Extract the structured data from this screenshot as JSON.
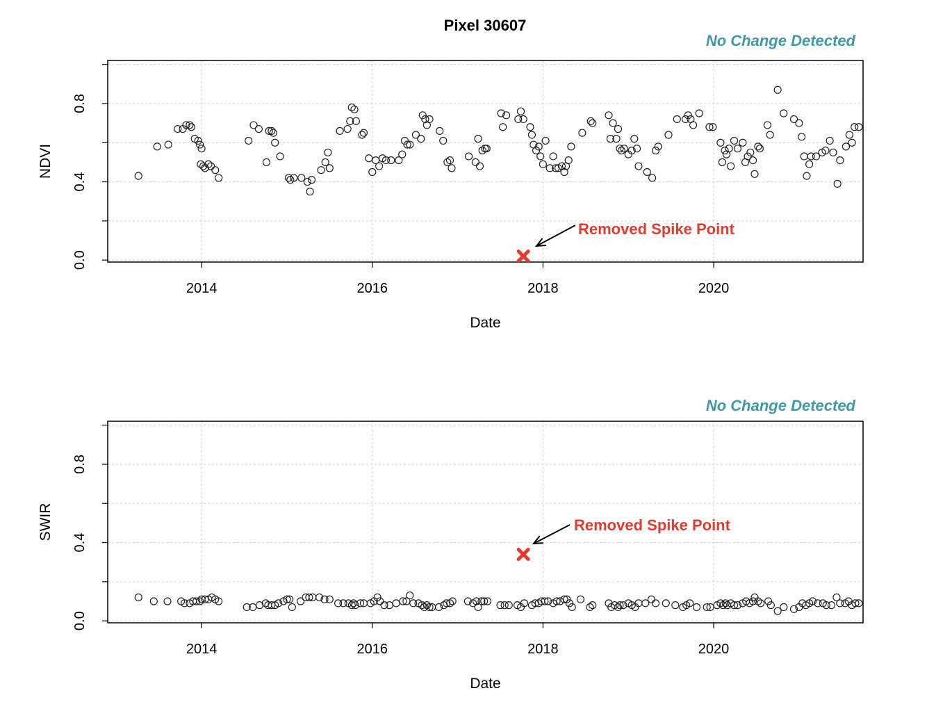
{
  "title": "Pixel 30607",
  "chart_data": [
    {
      "type": "scatter",
      "ylabel": "NDVI",
      "xlabel": "Date",
      "status": "No Change Detected",
      "annotation": "Removed Spike Point",
      "xlim": [
        2012.9,
        2021.75
      ],
      "ylim": [
        -0.01,
        1.02
      ],
      "xticks": [
        2014,
        2016,
        2018,
        2020
      ],
      "yticks": [
        0.0,
        0.4,
        0.8
      ],
      "xgrid": [
        2014,
        2016,
        2018,
        2020
      ],
      "ygrid": [
        0.0,
        0.2,
        0.4,
        0.6,
        0.8,
        1.0
      ],
      "spike": {
        "x": 2017.77,
        "y": 0.02
      },
      "points": [
        [
          2013.26,
          0.43
        ],
        [
          2013.48,
          0.58
        ],
        [
          2013.61,
          0.59
        ],
        [
          2013.72,
          0.67
        ],
        [
          2013.78,
          0.67
        ],
        [
          2013.82,
          0.69
        ],
        [
          2013.86,
          0.69
        ],
        [
          2013.88,
          0.68
        ],
        [
          2013.92,
          0.62
        ],
        [
          2013.96,
          0.61
        ],
        [
          2013.98,
          0.59
        ],
        [
          2014.0,
          0.57
        ],
        [
          2013.99,
          0.49
        ],
        [
          2014.02,
          0.48
        ],
        [
          2014.04,
          0.47
        ],
        [
          2014.08,
          0.49
        ],
        [
          2014.11,
          0.48
        ],
        [
          2014.16,
          0.46
        ],
        [
          2014.2,
          0.42
        ],
        [
          2014.55,
          0.61
        ],
        [
          2014.61,
          0.69
        ],
        [
          2014.67,
          0.67
        ],
        [
          2014.76,
          0.5
        ],
        [
          2014.79,
          0.66
        ],
        [
          2014.82,
          0.66
        ],
        [
          2014.84,
          0.65
        ],
        [
          2014.86,
          0.6
        ],
        [
          2014.92,
          0.53
        ],
        [
          2015.02,
          0.42
        ],
        [
          2015.04,
          0.41
        ],
        [
          2015.08,
          0.42
        ],
        [
          2015.17,
          0.42
        ],
        [
          2015.24,
          0.4
        ],
        [
          2015.27,
          0.35
        ],
        [
          2015.29,
          0.41
        ],
        [
          2015.4,
          0.46
        ],
        [
          2015.45,
          0.5
        ],
        [
          2015.48,
          0.55
        ],
        [
          2015.5,
          0.47
        ],
        [
          2015.62,
          0.66
        ],
        [
          2015.71,
          0.67
        ],
        [
          2015.74,
          0.71
        ],
        [
          2015.76,
          0.78
        ],
        [
          2015.79,
          0.77
        ],
        [
          2015.81,
          0.71
        ],
        [
          2015.88,
          0.64
        ],
        [
          2015.9,
          0.65
        ],
        [
          2015.96,
          0.52
        ],
        [
          2016.0,
          0.45
        ],
        [
          2016.04,
          0.51
        ],
        [
          2016.08,
          0.48
        ],
        [
          2016.12,
          0.52
        ],
        [
          2016.16,
          0.51
        ],
        [
          2016.22,
          0.51
        ],
        [
          2016.31,
          0.51
        ],
        [
          2016.35,
          0.54
        ],
        [
          2016.38,
          0.61
        ],
        [
          2016.41,
          0.59
        ],
        [
          2016.44,
          0.59
        ],
        [
          2016.51,
          0.64
        ],
        [
          2016.57,
          0.62
        ],
        [
          2016.59,
          0.74
        ],
        [
          2016.62,
          0.72
        ],
        [
          2016.64,
          0.69
        ],
        [
          2016.67,
          0.72
        ],
        [
          2016.79,
          0.66
        ],
        [
          2016.83,
          0.61
        ],
        [
          2016.88,
          0.5
        ],
        [
          2016.91,
          0.51
        ],
        [
          2016.93,
          0.47
        ],
        [
          2017.13,
          0.53
        ],
        [
          2017.21,
          0.5
        ],
        [
          2017.24,
          0.62
        ],
        [
          2017.26,
          0.48
        ],
        [
          2017.29,
          0.56
        ],
        [
          2017.32,
          0.57
        ],
        [
          2017.34,
          0.57
        ],
        [
          2017.51,
          0.75
        ],
        [
          2017.53,
          0.68
        ],
        [
          2017.57,
          0.74
        ],
        [
          2017.71,
          0.72
        ],
        [
          2017.74,
          0.76
        ],
        [
          2017.77,
          0.72
        ],
        [
          2017.85,
          0.68
        ],
        [
          2017.87,
          0.64
        ],
        [
          2017.89,
          0.59
        ],
        [
          2017.92,
          0.56
        ],
        [
          2017.95,
          0.58
        ],
        [
          2017.97,
          0.53
        ],
        [
          2018.0,
          0.49
        ],
        [
          2018.03,
          0.61
        ],
        [
          2018.08,
          0.47
        ],
        [
          2018.12,
          0.53
        ],
        [
          2018.15,
          0.47
        ],
        [
          2018.18,
          0.47
        ],
        [
          2018.22,
          0.48
        ],
        [
          2018.25,
          0.45
        ],
        [
          2018.27,
          0.48
        ],
        [
          2018.3,
          0.51
        ],
        [
          2018.33,
          0.58
        ],
        [
          2018.46,
          0.65
        ],
        [
          2018.56,
          0.71
        ],
        [
          2018.58,
          0.7
        ],
        [
          2018.77,
          0.74
        ],
        [
          2018.79,
          0.62
        ],
        [
          2018.82,
          0.7
        ],
        [
          2018.86,
          0.62
        ],
        [
          2018.88,
          0.67
        ],
        [
          2018.9,
          0.57
        ],
        [
          2018.92,
          0.56
        ],
        [
          2018.95,
          0.57
        ],
        [
          2019.0,
          0.54
        ],
        [
          2019.04,
          0.56
        ],
        [
          2019.07,
          0.62
        ],
        [
          2019.1,
          0.57
        ],
        [
          2019.12,
          0.48
        ],
        [
          2019.22,
          0.45
        ],
        [
          2019.28,
          0.42
        ],
        [
          2019.32,
          0.56
        ],
        [
          2019.35,
          0.58
        ],
        [
          2019.47,
          0.64
        ],
        [
          2019.57,
          0.72
        ],
        [
          2019.67,
          0.72
        ],
        [
          2019.7,
          0.74
        ],
        [
          2019.73,
          0.72
        ],
        [
          2019.76,
          0.69
        ],
        [
          2019.83,
          0.75
        ],
        [
          2019.95,
          0.68
        ],
        [
          2019.99,
          0.68
        ],
        [
          2020.08,
          0.6
        ],
        [
          2020.1,
          0.5
        ],
        [
          2020.13,
          0.56
        ],
        [
          2020.15,
          0.54
        ],
        [
          2020.18,
          0.57
        ],
        [
          2020.2,
          0.48
        ],
        [
          2020.24,
          0.61
        ],
        [
          2020.28,
          0.57
        ],
        [
          2020.34,
          0.6
        ],
        [
          2020.37,
          0.5
        ],
        [
          2020.4,
          0.53
        ],
        [
          2020.43,
          0.55
        ],
        [
          2020.46,
          0.51
        ],
        [
          2020.48,
          0.44
        ],
        [
          2020.52,
          0.58
        ],
        [
          2020.54,
          0.57
        ],
        [
          2020.63,
          0.69
        ],
        [
          2020.66,
          0.64
        ],
        [
          2020.75,
          0.87
        ],
        [
          2020.82,
          0.75
        ],
        [
          2020.94,
          0.72
        ],
        [
          2021.0,
          0.7
        ],
        [
          2021.03,
          0.63
        ],
        [
          2021.06,
          0.53
        ],
        [
          2021.09,
          0.43
        ],
        [
          2021.12,
          0.49
        ],
        [
          2021.14,
          0.53
        ],
        [
          2021.2,
          0.53
        ],
        [
          2021.27,
          0.55
        ],
        [
          2021.31,
          0.56
        ],
        [
          2021.36,
          0.61
        ],
        [
          2021.4,
          0.55
        ],
        [
          2021.45,
          0.39
        ],
        [
          2021.48,
          0.51
        ],
        [
          2021.55,
          0.58
        ],
        [
          2021.59,
          0.64
        ],
        [
          2021.62,
          0.6
        ],
        [
          2021.65,
          0.68
        ],
        [
          2021.7,
          0.68
        ]
      ]
    },
    {
      "type": "scatter",
      "ylabel": "SWIR",
      "xlabel": "Date",
      "status": "No Change Detected",
      "annotation": "Removed Spike Point",
      "xlim": [
        2012.9,
        2021.75
      ],
      "ylim": [
        -0.01,
        1.02
      ],
      "xticks": [
        2014,
        2016,
        2018,
        2020
      ],
      "yticks": [
        0.0,
        0.4,
        0.8
      ],
      "xgrid": [
        2014,
        2016,
        2018,
        2020
      ],
      "ygrid": [
        0.0,
        0.2,
        0.4,
        0.6,
        0.8,
        1.0
      ],
      "spike": {
        "x": 2017.77,
        "y": 0.34
      },
      "points": [
        [
          2013.26,
          0.12
        ],
        [
          2013.44,
          0.1
        ],
        [
          2013.6,
          0.1
        ],
        [
          2013.76,
          0.1
        ],
        [
          2013.8,
          0.09
        ],
        [
          2013.86,
          0.09
        ],
        [
          2013.9,
          0.1
        ],
        [
          2013.94,
          0.1
        ],
        [
          2013.98,
          0.1
        ],
        [
          2014.0,
          0.11
        ],
        [
          2014.04,
          0.11
        ],
        [
          2014.08,
          0.11
        ],
        [
          2014.12,
          0.12
        ],
        [
          2014.16,
          0.11
        ],
        [
          2014.2,
          0.1
        ],
        [
          2014.53,
          0.07
        ],
        [
          2014.6,
          0.07
        ],
        [
          2014.68,
          0.08
        ],
        [
          2014.75,
          0.09
        ],
        [
          2014.78,
          0.08
        ],
        [
          2014.82,
          0.08
        ],
        [
          2014.86,
          0.08
        ],
        [
          2014.9,
          0.09
        ],
        [
          2014.96,
          0.1
        ],
        [
          2015.0,
          0.11
        ],
        [
          2015.03,
          0.11
        ],
        [
          2015.06,
          0.07
        ],
        [
          2015.16,
          0.1
        ],
        [
          2015.22,
          0.12
        ],
        [
          2015.26,
          0.12
        ],
        [
          2015.3,
          0.12
        ],
        [
          2015.38,
          0.12
        ],
        [
          2015.44,
          0.11
        ],
        [
          2015.5,
          0.11
        ],
        [
          2015.6,
          0.09
        ],
        [
          2015.66,
          0.09
        ],
        [
          2015.72,
          0.09
        ],
        [
          2015.76,
          0.08
        ],
        [
          2015.78,
          0.09
        ],
        [
          2015.8,
          0.08
        ],
        [
          2015.86,
          0.09
        ],
        [
          2015.9,
          0.09
        ],
        [
          2015.98,
          0.09
        ],
        [
          2016.02,
          0.1
        ],
        [
          2016.06,
          0.12
        ],
        [
          2016.09,
          0.1
        ],
        [
          2016.14,
          0.08
        ],
        [
          2016.2,
          0.08
        ],
        [
          2016.28,
          0.09
        ],
        [
          2016.36,
          0.1
        ],
        [
          2016.4,
          0.1
        ],
        [
          2016.44,
          0.13
        ],
        [
          2016.48,
          0.09
        ],
        [
          2016.54,
          0.09
        ],
        [
          2016.58,
          0.08
        ],
        [
          2016.61,
          0.07
        ],
        [
          2016.64,
          0.08
        ],
        [
          2016.67,
          0.07
        ],
        [
          2016.7,
          0.07
        ],
        [
          2016.78,
          0.07
        ],
        [
          2016.84,
          0.08
        ],
        [
          2016.87,
          0.09
        ],
        [
          2016.91,
          0.09
        ],
        [
          2016.94,
          0.1
        ],
        [
          2017.12,
          0.1
        ],
        [
          2017.18,
          0.09
        ],
        [
          2017.22,
          0.1
        ],
        [
          2017.24,
          0.07
        ],
        [
          2017.28,
          0.1
        ],
        [
          2017.31,
          0.1
        ],
        [
          2017.35,
          0.1
        ],
        [
          2017.5,
          0.08
        ],
        [
          2017.55,
          0.08
        ],
        [
          2017.6,
          0.08
        ],
        [
          2017.7,
          0.08
        ],
        [
          2017.74,
          0.07
        ],
        [
          2017.78,
          0.09
        ],
        [
          2017.87,
          0.08
        ],
        [
          2017.91,
          0.09
        ],
        [
          2017.95,
          0.09
        ],
        [
          2017.98,
          0.1
        ],
        [
          2018.02,
          0.1
        ],
        [
          2018.06,
          0.1
        ],
        [
          2018.12,
          0.09
        ],
        [
          2018.16,
          0.1
        ],
        [
          2018.2,
          0.1
        ],
        [
          2018.25,
          0.11
        ],
        [
          2018.28,
          0.11
        ],
        [
          2018.31,
          0.09
        ],
        [
          2018.34,
          0.07
        ],
        [
          2018.44,
          0.11
        ],
        [
          2018.55,
          0.07
        ],
        [
          2018.58,
          0.08
        ],
        [
          2018.77,
          0.09
        ],
        [
          2018.8,
          0.07
        ],
        [
          2018.84,
          0.08
        ],
        [
          2018.88,
          0.07
        ],
        [
          2018.9,
          0.08
        ],
        [
          2018.94,
          0.08
        ],
        [
          2019.0,
          0.09
        ],
        [
          2019.04,
          0.08
        ],
        [
          2019.08,
          0.07
        ],
        [
          2019.12,
          0.09
        ],
        [
          2019.2,
          0.09
        ],
        [
          2019.27,
          0.11
        ],
        [
          2019.32,
          0.09
        ],
        [
          2019.44,
          0.09
        ],
        [
          2019.55,
          0.08
        ],
        [
          2019.64,
          0.07
        ],
        [
          2019.68,
          0.08
        ],
        [
          2019.72,
          0.09
        ],
        [
          2019.8,
          0.07
        ],
        [
          2019.92,
          0.07
        ],
        [
          2019.96,
          0.07
        ],
        [
          2020.04,
          0.08
        ],
        [
          2020.08,
          0.09
        ],
        [
          2020.11,
          0.08
        ],
        [
          2020.14,
          0.09
        ],
        [
          2020.16,
          0.08
        ],
        [
          2020.2,
          0.09
        ],
        [
          2020.24,
          0.08
        ],
        [
          2020.28,
          0.08
        ],
        [
          2020.34,
          0.09
        ],
        [
          2020.38,
          0.1
        ],
        [
          2020.42,
          0.09
        ],
        [
          2020.46,
          0.1
        ],
        [
          2020.48,
          0.12
        ],
        [
          2020.52,
          0.1
        ],
        [
          2020.55,
          0.09
        ],
        [
          2020.64,
          0.1
        ],
        [
          2020.67,
          0.08
        ],
        [
          2020.75,
          0.05
        ],
        [
          2020.82,
          0.07
        ],
        [
          2020.94,
          0.06
        ],
        [
          2021.0,
          0.07
        ],
        [
          2021.04,
          0.09
        ],
        [
          2021.08,
          0.08
        ],
        [
          2021.12,
          0.09
        ],
        [
          2021.16,
          0.1
        ],
        [
          2021.22,
          0.09
        ],
        [
          2021.28,
          0.09
        ],
        [
          2021.32,
          0.08
        ],
        [
          2021.38,
          0.08
        ],
        [
          2021.44,
          0.12
        ],
        [
          2021.48,
          0.09
        ],
        [
          2021.54,
          0.09
        ],
        [
          2021.58,
          0.1
        ],
        [
          2021.62,
          0.08
        ],
        [
          2021.66,
          0.09
        ],
        [
          2021.7,
          0.09
        ]
      ]
    }
  ]
}
